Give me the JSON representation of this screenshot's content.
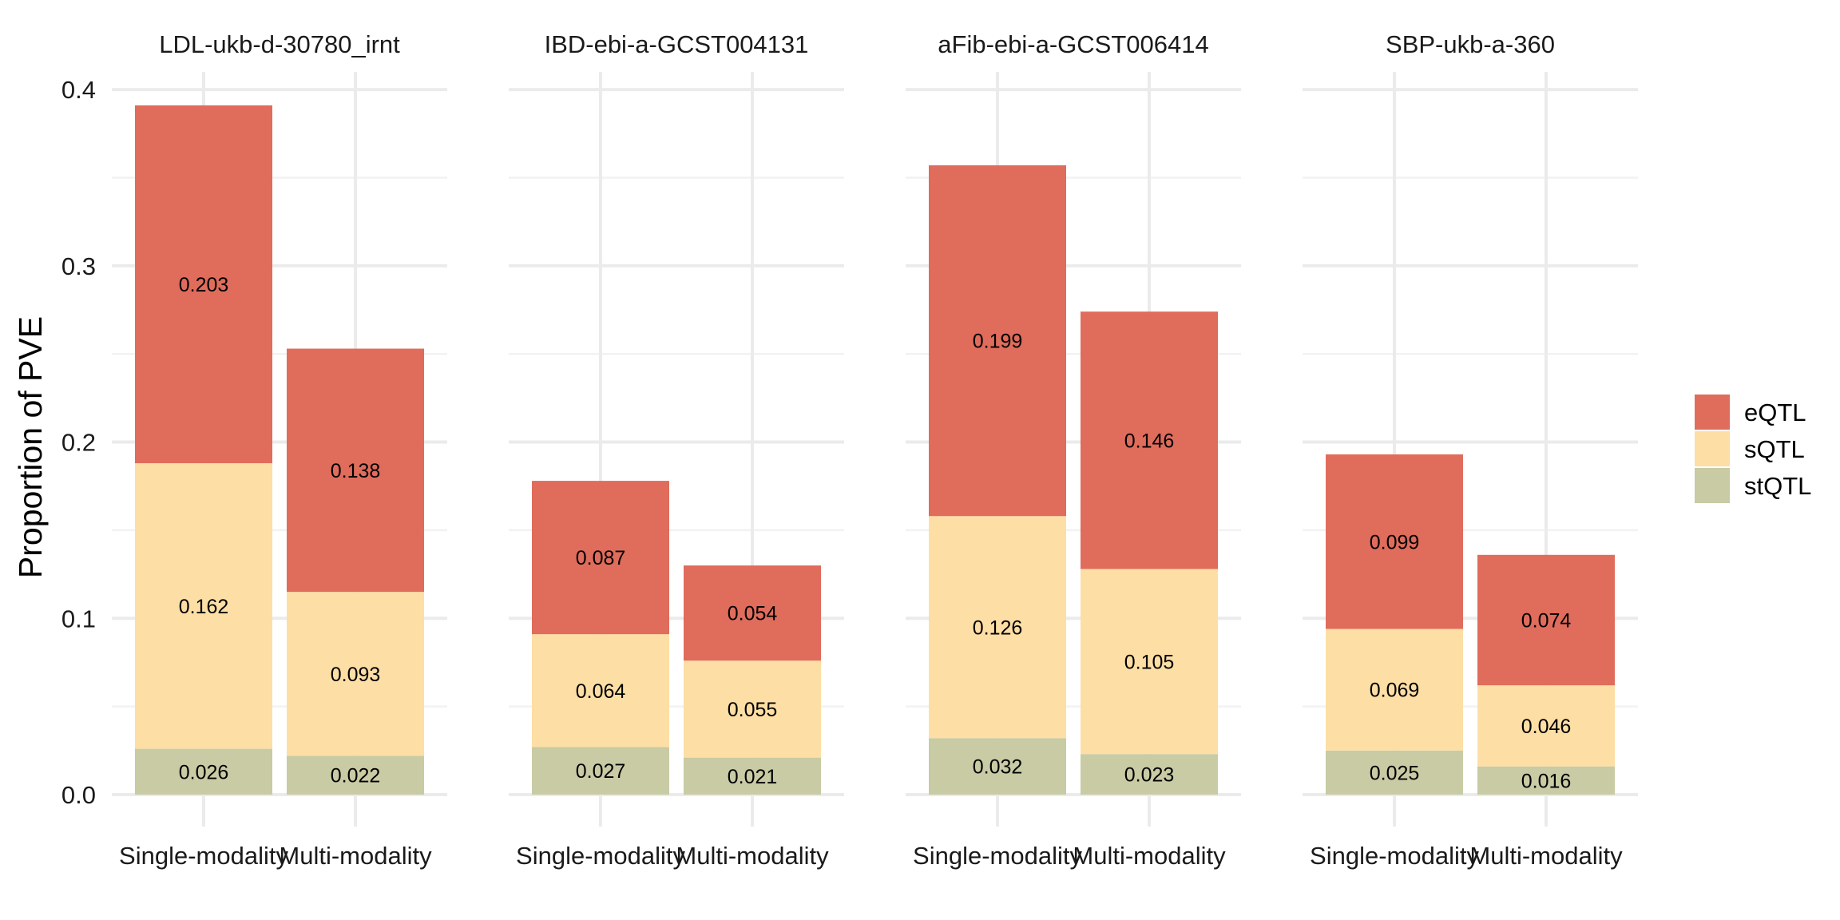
{
  "chart_data": {
    "type": "bar",
    "stacked": true,
    "ylabel": "Proportion of PVE",
    "xlabel": "",
    "ylim": [
      0,
      0.41
    ],
    "yticks": [
      "0.0",
      "0.1",
      "0.2",
      "0.3",
      "0.4"
    ],
    "grid": true,
    "legend_position": "right",
    "categories": [
      "Single-modality",
      "Multi-modality"
    ],
    "series_order": [
      "stQTL",
      "sQTL",
      "eQTL"
    ],
    "legend": [
      {
        "name": "eQTL",
        "color": "#E06C5C"
      },
      {
        "name": "sQTL",
        "color": "#FDDEA5"
      },
      {
        "name": "stQTL",
        "color": "#C8CBA4"
      }
    ],
    "facets": [
      {
        "title": "LDL-ukb-d-30780_irnt",
        "bars": [
          {
            "category": "Single-modality",
            "stQTL": 0.026,
            "sQTL": 0.162,
            "eQTL": 0.203
          },
          {
            "category": "Multi-modality",
            "stQTL": 0.022,
            "sQTL": 0.093,
            "eQTL": 0.138
          }
        ]
      },
      {
        "title": "IBD-ebi-a-GCST004131",
        "bars": [
          {
            "category": "Single-modality",
            "stQTL": 0.027,
            "sQTL": 0.064,
            "eQTL": 0.087
          },
          {
            "category": "Multi-modality",
            "stQTL": 0.021,
            "sQTL": 0.055,
            "eQTL": 0.054
          }
        ]
      },
      {
        "title": "aFib-ebi-a-GCST006414",
        "bars": [
          {
            "category": "Single-modality",
            "stQTL": 0.032,
            "sQTL": 0.126,
            "eQTL": 0.199
          },
          {
            "category": "Multi-modality",
            "stQTL": 0.023,
            "sQTL": 0.105,
            "eQTL": 0.146
          }
        ]
      },
      {
        "title": "SBP-ukb-a-360",
        "bars": [
          {
            "category": "Single-modality",
            "stQTL": 0.025,
            "sQTL": 0.069,
            "eQTL": 0.099
          },
          {
            "category": "Multi-modality",
            "stQTL": 0.016,
            "sQTL": 0.046,
            "eQTL": 0.074
          }
        ]
      }
    ]
  }
}
